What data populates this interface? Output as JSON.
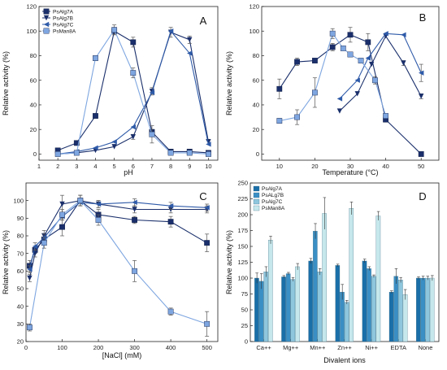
{
  "chart_data": [
    {
      "type": "line",
      "letter": "A",
      "xlabel": "pH",
      "ylabel": "Relative activity (%)",
      "xlim": [
        1,
        10.5
      ],
      "ylim": [
        -5,
        120
      ],
      "xticks": [
        1,
        2,
        3,
        4,
        5,
        6,
        7,
        8,
        9,
        10
      ],
      "yticks": [
        0,
        20,
        40,
        60,
        80,
        100,
        120
      ],
      "legend": {
        "position": "top-left"
      },
      "series": [
        {
          "name": "PsAlg7A",
          "marker": "square",
          "color": "#1a2f6b",
          "x": [
            2,
            3,
            4,
            5,
            6,
            7,
            8,
            9,
            10
          ],
          "y": [
            3,
            9,
            31,
            100,
            91,
            18,
            2,
            2,
            1
          ],
          "err": [
            0,
            0,
            0,
            3,
            4,
            2,
            0,
            0,
            0
          ]
        },
        {
          "name": "PsAlg7B",
          "marker": "triangle-down",
          "color": "#1a2f6b",
          "x": [
            2,
            3,
            4,
            5,
            6,
            7,
            8,
            9,
            10
          ],
          "y": [
            0,
            1,
            3,
            6,
            14,
            51,
            99,
            93,
            10
          ],
          "err": [
            0,
            0,
            0,
            0,
            2,
            3,
            4,
            3,
            2
          ]
        },
        {
          "name": "PsAlg7C",
          "marker": "triangle-left",
          "color": "#2e5aa8",
          "x": [
            2,
            3,
            4,
            5,
            6,
            7,
            8,
            9,
            10
          ],
          "y": [
            0,
            2,
            5,
            10,
            22,
            50,
            100,
            82,
            8
          ],
          "err": [
            0,
            0,
            0,
            0,
            0,
            0,
            0,
            0,
            0
          ]
        },
        {
          "name": "PsMan8A",
          "marker": "square",
          "color": "#7ea6e0",
          "x": [
            2,
            3,
            4,
            5,
            6,
            7,
            8,
            9,
            10
          ],
          "y": [
            0,
            1,
            78,
            101,
            66,
            16,
            1,
            1,
            0
          ],
          "err": [
            0,
            0,
            2,
            4,
            4,
            7,
            0,
            0,
            0
          ]
        }
      ]
    },
    {
      "type": "line",
      "letter": "B",
      "xlabel": "Temperature (°C)",
      "ylabel": "Relative activity (%)",
      "xlim": [
        5,
        55
      ],
      "ylim": [
        -5,
        120
      ],
      "xticks": [
        10,
        20,
        30,
        40,
        50
      ],
      "yticks": [
        0,
        20,
        40,
        60,
        80,
        100,
        120
      ],
      "series": [
        {
          "name": "PsAlg7A",
          "marker": "square",
          "color": "#1a2f6b",
          "x": [
            10,
            15,
            20,
            25,
            30,
            35,
            40,
            50
          ],
          "y": [
            53,
            75,
            76,
            87,
            97,
            91,
            28,
            0
          ],
          "err": [
            8,
            3,
            0,
            3,
            6,
            7,
            2,
            0
          ]
        },
        {
          "name": "PsAlg7B",
          "marker": "triangle-down",
          "color": "#1a2f6b",
          "x": [
            27,
            32,
            36,
            40,
            45,
            50
          ],
          "y": [
            35,
            49,
            73,
            96,
            74,
            47
          ],
          "err": [
            0,
            0,
            0,
            0,
            2,
            2
          ]
        },
        {
          "name": "PsAlg7C",
          "marker": "triangle-left",
          "color": "#2e5aa8",
          "x": [
            27,
            32,
            35,
            40,
            45,
            50
          ],
          "y": [
            45,
            60,
            78,
            98,
            97,
            66
          ],
          "err": [
            0,
            0,
            0,
            0,
            0,
            7
          ]
        },
        {
          "name": "PsMan8A",
          "marker": "square",
          "color": "#7ea6e0",
          "x": [
            10,
            15,
            20,
            25,
            28,
            30,
            33,
            37,
            40
          ],
          "y": [
            27,
            30,
            50,
            98,
            86,
            81,
            76,
            60,
            31
          ],
          "err": [
            2,
            6,
            12,
            4,
            0,
            0,
            0,
            3,
            0
          ]
        }
      ]
    },
    {
      "type": "line",
      "letter": "C",
      "xlabel": "[NaCl] (mM)",
      "ylabel": "Relative activity (%)",
      "xlim": [
        0,
        530
      ],
      "ylim": [
        20,
        110
      ],
      "xticks": [
        0,
        100,
        200,
        300,
        400,
        500
      ],
      "yticks": [
        20,
        30,
        40,
        50,
        60,
        70,
        80,
        90,
        100
      ],
      "series": [
        {
          "name": "PsAlg7A",
          "marker": "square",
          "color": "#1a2f6b",
          "x": [
            10,
            25,
            50,
            100,
            150,
            200,
            300,
            400,
            500
          ],
          "y": [
            63,
            72,
            78,
            85,
            100,
            92,
            89,
            88,
            76
          ],
          "err": [
            3,
            2,
            3,
            5,
            3,
            3,
            2,
            3,
            5
          ]
        },
        {
          "name": "PsAlg7B",
          "marker": "triangle-down",
          "color": "#1a2f6b",
          "x": [
            10,
            25,
            50,
            100,
            150,
            200,
            300,
            400,
            500
          ],
          "y": [
            56,
            70,
            80,
            98,
            100,
            98,
            95,
            95,
            95
          ],
          "err": [
            2,
            2,
            3,
            5,
            3,
            2,
            2,
            2,
            2
          ]
        },
        {
          "name": "PsAlg7C",
          "marker": "triangle-left",
          "color": "#2e5aa8",
          "x": [
            10,
            25,
            50,
            100,
            150,
            200,
            300,
            400,
            500
          ],
          "y": [
            61,
            74,
            79,
            91,
            99,
            98,
            99,
            97,
            96
          ],
          "err": [
            2,
            2,
            2,
            2,
            2,
            2,
            2,
            2,
            2
          ]
        },
        {
          "name": "PsMan8A",
          "marker": "square",
          "color": "#7ea6e0",
          "x": [
            10,
            50,
            100,
            150,
            200,
            300,
            400,
            500
          ],
          "y": [
            28,
            76,
            92,
            100,
            89,
            60,
            37,
            30
          ],
          "err": [
            2,
            3,
            3,
            3,
            3,
            6,
            2,
            7
          ]
        }
      ]
    },
    {
      "type": "bar",
      "letter": "D",
      "xlabel": "Divalent ions",
      "ylabel": "Relative activity (%)",
      "ylim": [
        0,
        250
      ],
      "yticks": [
        0,
        25,
        50,
        75,
        100,
        125,
        150,
        175,
        200,
        225,
        250
      ],
      "legend": {
        "position": "top-left"
      },
      "categories": [
        "Ca++",
        "Mg++",
        "Mn++",
        "Zn++",
        "Ni++",
        "EDTA",
        "None"
      ],
      "series": [
        {
          "name": "PsAlg7A",
          "color": "#1a6fa8",
          "values": [
            100,
            102,
            127,
            120,
            127,
            78,
            100
          ],
          "err": [
            8,
            2,
            4,
            2,
            3,
            2,
            2
          ]
        },
        {
          "name": "PsALg7B",
          "color": "#3a8fc4",
          "values": [
            95,
            107,
            174,
            78,
            115,
            103,
            100
          ],
          "err": [
            12,
            2,
            12,
            12,
            3,
            12,
            3
          ]
        },
        {
          "name": "PsAlg7C",
          "color": "#8ec6dd",
          "values": [
            110,
            98,
            110,
            62,
            103,
            97,
            100
          ],
          "err": [
            8,
            3,
            5,
            3,
            2,
            4,
            3
          ]
        },
        {
          "name": "PsMan8A",
          "color": "#c6e8ec",
          "values": [
            160,
            118,
            202,
            210,
            198,
            74,
            100
          ],
          "err": [
            6,
            5,
            25,
            10,
            7,
            8,
            4
          ]
        }
      ]
    }
  ]
}
